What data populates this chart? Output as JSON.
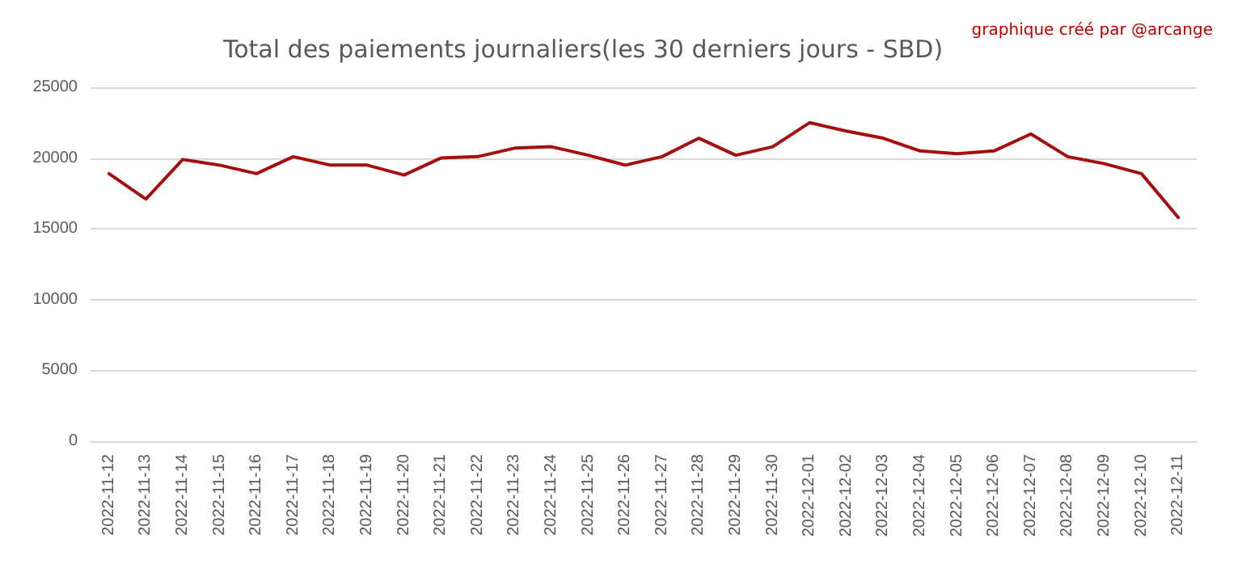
{
  "chart_data": {
    "type": "line",
    "title": "Total des paiements journaliers(les 30 derniers jours - SBD)",
    "annotations": [
      "graphique créé par @arcange"
    ],
    "categories": [
      "2022-11-12",
      "2022-11-13",
      "2022-11-14",
      "2022-11-15",
      "2022-11-16",
      "2022-11-17",
      "2022-11-18",
      "2022-11-19",
      "2022-11-20",
      "2022-11-21",
      "2022-11-22",
      "2022-11-23",
      "2022-11-24",
      "2022-11-25",
      "2022-11-26",
      "2022-11-27",
      "2022-11-28",
      "2022-11-29",
      "2022-11-30",
      "2022-12-01",
      "2022-12-02",
      "2022-12-03",
      "2022-12-04",
      "2022-12-05",
      "2022-12-06",
      "2022-12-07",
      "2022-12-08",
      "2022-12-09",
      "2022-12-10",
      "2022-12-11"
    ],
    "series": [
      {
        "color": "#a50f0f",
        "values": [
          18900,
          17100,
          19900,
          19500,
          18900,
          20100,
          19500,
          19500,
          18800,
          20000,
          20100,
          20700,
          20800,
          20200,
          19500,
          20100,
          21400,
          20200,
          20800,
          22500,
          21900,
          21400,
          20500,
          20300,
          20500,
          21700,
          20100,
          19600,
          18900,
          15800
        ]
      }
    ],
    "ylim": [
      0,
      25000
    ],
    "yticks": [
      0,
      5000,
      10000,
      15000,
      20000,
      25000
    ],
    "grid": "y",
    "marker": "none",
    "line_style": "solid"
  }
}
